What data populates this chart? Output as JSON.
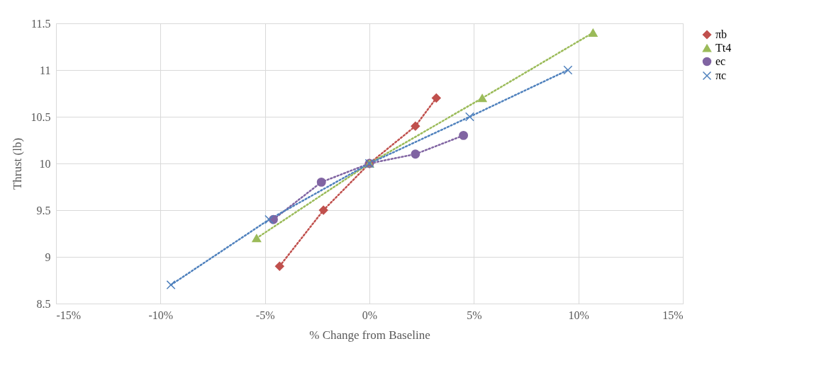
{
  "chart_data": {
    "type": "line",
    "xlabel": "% Change from Baseline",
    "ylabel": "Thrust (lb)",
    "xlim": [
      -15,
      15
    ],
    "xticks": [
      {
        "value": -15,
        "label": "-15%"
      },
      {
        "value": -10,
        "label": "-10%"
      },
      {
        "value": -5,
        "label": "-5%"
      },
      {
        "value": 0,
        "label": "0%"
      },
      {
        "value": 5,
        "label": "5%"
      },
      {
        "value": 10,
        "label": "10%"
      },
      {
        "value": 15,
        "label": "15%"
      }
    ],
    "ylim": [
      8.5,
      11.5
    ],
    "yticks": [
      8.5,
      9,
      9.5,
      10,
      10.5,
      11,
      11.5
    ],
    "grid": true,
    "legend": "right",
    "line_style": "dotted",
    "series": [
      {
        "name": "πb",
        "color": "#c0504d",
        "marker": "diamond",
        "x": [
          -4.3,
          -2.2,
          0,
          2.2,
          3.2
        ],
        "values": [
          8.9,
          9.5,
          10,
          10.4,
          10.7
        ]
      },
      {
        "name": "Tt4",
        "color": "#9bbb59",
        "marker": "triangle",
        "x": [
          -5.4,
          0,
          5.4,
          10.7
        ],
        "values": [
          9.2,
          10,
          10.7,
          11.4
        ]
      },
      {
        "name": "ec",
        "color": "#8064a2",
        "marker": "circle",
        "x": [
          -4.6,
          -2.3,
          0,
          2.2,
          4.5
        ],
        "values": [
          9.4,
          9.8,
          10,
          10.1,
          10.3
        ]
      },
      {
        "name": "πc",
        "color": "#4f81bd",
        "marker": "cross",
        "x": [
          -9.5,
          -4.8,
          0,
          4.8,
          9.5
        ],
        "values": [
          8.7,
          9.4,
          10,
          10.5,
          11.0
        ]
      }
    ]
  }
}
